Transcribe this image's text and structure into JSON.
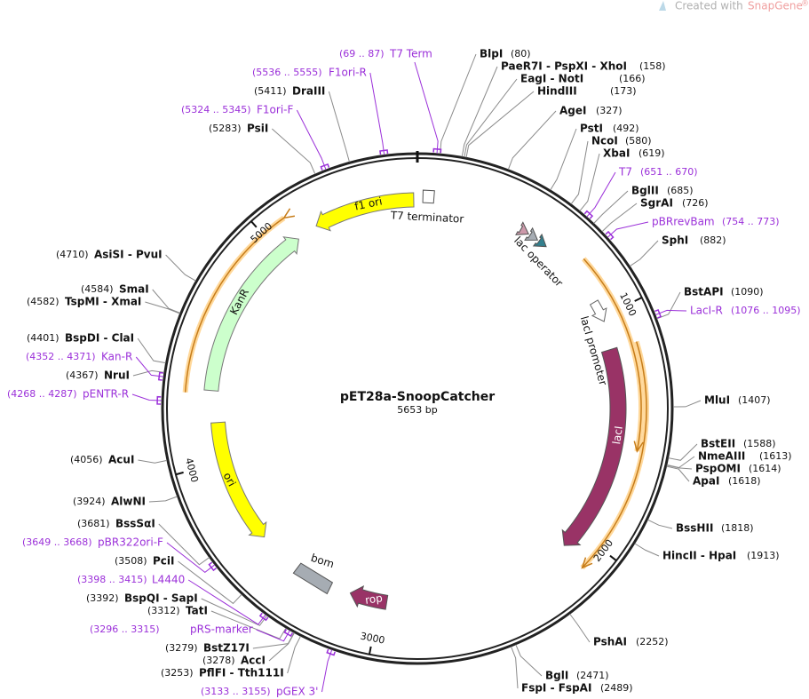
{
  "header": {
    "created_with": "Created with",
    "brand": "SnapGene",
    "mark": "®"
  },
  "map": {
    "name": "pET28a-SnoopCatcher",
    "size": "5653 bp",
    "ticks": [
      "1000",
      "2000",
      "3000",
      "4000",
      "5000"
    ],
    "features": [
      "f1 ori",
      "T7 terminator",
      "KanR",
      "ori",
      "bom",
      "rop",
      "lacI",
      "lacI promoter",
      "lac operator"
    ],
    "sites": [
      {
        "name": "BlpI",
        "pos": "(80)"
      },
      {
        "name": "PaeR7I - PspXI - XhoI",
        "pos": "(158)"
      },
      {
        "name": "EagI - NotI",
        "pos": "(166)"
      },
      {
        "name": "HindIII",
        "pos": "(173)"
      },
      {
        "name": "AgeI",
        "pos": "(327)"
      },
      {
        "name": "PstI",
        "pos": "(492)"
      },
      {
        "name": "NcoI",
        "pos": "(580)"
      },
      {
        "name": "XbaI",
        "pos": "(619)"
      },
      {
        "name": "BglII",
        "pos": "(685)"
      },
      {
        "name": "SgrAI",
        "pos": "(726)"
      },
      {
        "name": "SphI",
        "pos": "(882)"
      },
      {
        "name": "BstAPI",
        "pos": "(1090)"
      },
      {
        "name": "MluI",
        "pos": "(1407)"
      },
      {
        "name": "BstEII",
        "pos": "(1588)"
      },
      {
        "name": "NmeAIII",
        "pos": "(1613)"
      },
      {
        "name": "PspOMI",
        "pos": "(1614)"
      },
      {
        "name": "ApaI",
        "pos": "(1618)"
      },
      {
        "name": "BssHII",
        "pos": "(1818)"
      },
      {
        "name": "HincII - HpaI",
        "pos": "(1913)"
      },
      {
        "name": "PshAI",
        "pos": "(2252)"
      },
      {
        "name": "BglI",
        "pos": "(2471)"
      },
      {
        "name": "FspI - FspAI",
        "pos": "(2489)"
      },
      {
        "name": "PflFI - Tth111I",
        "pos": "(3253)"
      },
      {
        "name": "AccI",
        "pos": "(3278)"
      },
      {
        "name": "BstZ17I",
        "pos": "(3279)"
      },
      {
        "name": "TatI",
        "pos": "(3312)"
      },
      {
        "name": "BspQI - SapI",
        "pos": "(3392)"
      },
      {
        "name": "PciI",
        "pos": "(3508)"
      },
      {
        "name": "BssSαI",
        "pos": "(3681)"
      },
      {
        "name": "AlwNI",
        "pos": "(3924)"
      },
      {
        "name": "AcuI",
        "pos": "(4056)"
      },
      {
        "name": "NruI",
        "pos": "(4367)"
      },
      {
        "name": "BspDI - ClaI",
        "pos": "(4401)"
      },
      {
        "name": "TspMI - XmaI",
        "pos": "(4582)"
      },
      {
        "name": "SmaI",
        "pos": "(4584)"
      },
      {
        "name": "AsiSI - PvuI",
        "pos": "(4710)"
      },
      {
        "name": "PsiI",
        "pos": "(5283)"
      },
      {
        "name": "DraIII",
        "pos": "(5411)"
      }
    ],
    "primers": [
      {
        "name": "T7 Term",
        "range": "(69 .. 87)"
      },
      {
        "name": "T7",
        "range": "(651 .. 670)"
      },
      {
        "name": "pBRrevBam",
        "range": "(754 .. 773)"
      },
      {
        "name": "LacI-R",
        "range": "(1076 .. 1095)"
      },
      {
        "name": "pGEX 3'",
        "range": "(3133 .. 3155)"
      },
      {
        "name": "pRS-marker",
        "range": "(3296 .. 3315)"
      },
      {
        "name": "L4440",
        "range": "(3398 .. 3415)"
      },
      {
        "name": "pBR322ori-F",
        "range": "(3649 .. 3668)"
      },
      {
        "name": "pENTR-R",
        "range": "(4268 .. 4287)"
      },
      {
        "name": "Kan-R",
        "range": "(4352 .. 4371)"
      },
      {
        "name": "F1ori-F",
        "range": "(5324 .. 5345)"
      },
      {
        "name": "F1ori-R",
        "range": "(5536 .. 5555)"
      }
    ]
  }
}
